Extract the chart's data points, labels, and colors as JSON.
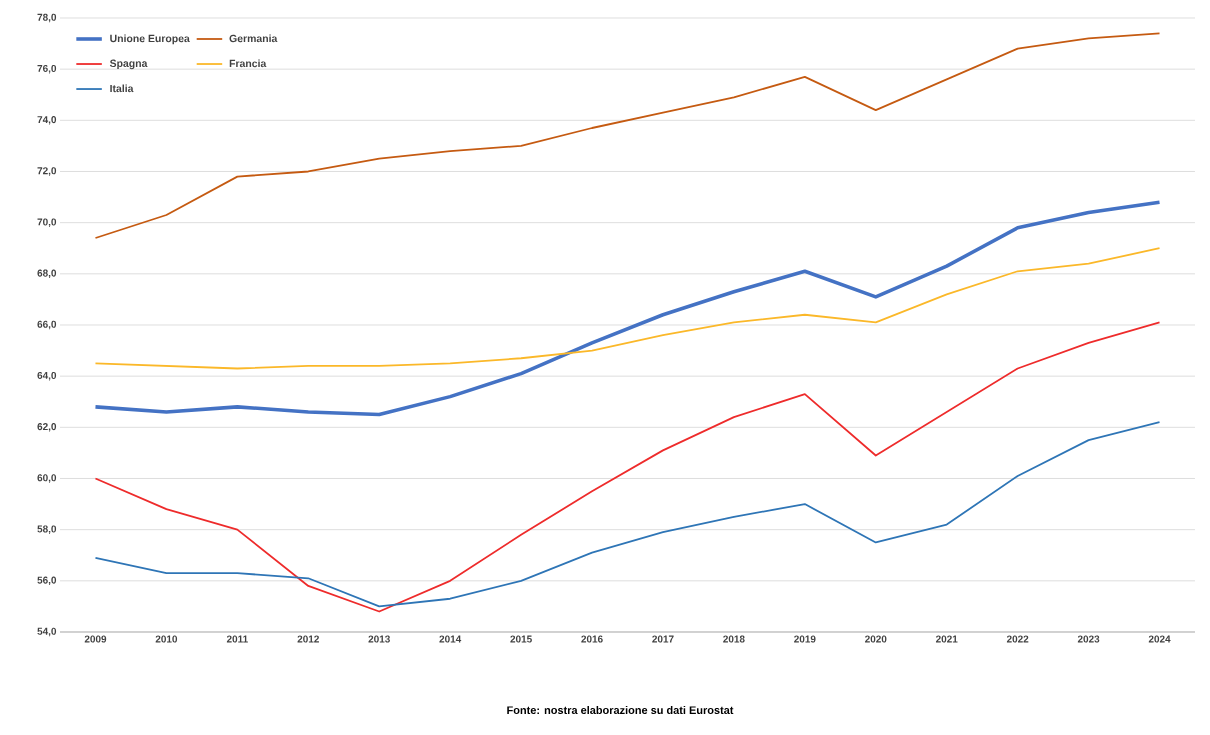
{
  "chart_data": {
    "type": "line",
    "categories": [
      "2009",
      "2010",
      "2011",
      "2012",
      "2013",
      "2014",
      "2015",
      "2016",
      "2017",
      "2018",
      "2019",
      "2020",
      "2021",
      "2022",
      "2023",
      "2024"
    ],
    "series": [
      {
        "name": "Unione Europea",
        "color": "#4472c4",
        "values": [
          62.8,
          62.6,
          62.8,
          62.6,
          62.5,
          63.2,
          64.1,
          65.3,
          66.4,
          67.3,
          68.1,
          67.1,
          68.3,
          69.8,
          70.4,
          70.8
        ]
      },
      {
        "name": "Germania",
        "color": "#c55a11",
        "values": [
          69.4,
          70.3,
          71.8,
          72.0,
          72.5,
          72.8,
          73.0,
          73.7,
          74.3,
          74.9,
          75.7,
          74.4,
          75.6,
          76.8,
          77.2,
          77.4
        ]
      },
      {
        "name": "Spagna",
        "color": "#ee2b2b",
        "values": [
          60.0,
          58.8,
          58.0,
          55.8,
          54.8,
          56.0,
          57.8,
          59.5,
          61.1,
          62.4,
          63.3,
          60.9,
          62.6,
          64.3,
          65.3,
          66.1
        ]
      },
      {
        "name": "Francia",
        "color": "#fbb829",
        "values": [
          64.5,
          64.4,
          64.3,
          64.4,
          64.4,
          64.5,
          64.7,
          65.0,
          65.6,
          66.1,
          66.4,
          66.1,
          67.2,
          68.1,
          68.4,
          69.0
        ]
      },
      {
        "name": "Italia",
        "color": "#2e75b6",
        "values": [
          56.9,
          56.3,
          56.3,
          56.1,
          55.0,
          55.3,
          56.0,
          57.1,
          57.9,
          58.5,
          59.0,
          57.5,
          58.2,
          60.1,
          61.5,
          62.2
        ]
      }
    ],
    "ylim": [
      54,
      78
    ],
    "yticks": [
      {
        "value": 54,
        "label": "54,0"
      },
      {
        "value": 56,
        "label": "56,0"
      },
      {
        "value": 58,
        "label": "58,0"
      },
      {
        "value": 60,
        "label": "60,0"
      },
      {
        "value": 62,
        "label": "62,0"
      },
      {
        "value": 64,
        "label": "64,0"
      },
      {
        "value": 66,
        "label": "66,0"
      },
      {
        "value": 68,
        "label": "68,0"
      },
      {
        "value": 70,
        "label": "70,0"
      },
      {
        "value": 72,
        "label": "72,0"
      },
      {
        "value": 74,
        "label": "74,0"
      },
      {
        "value": 76,
        "label": "76,0"
      },
      {
        "value": 78,
        "label": "78,0"
      }
    ],
    "grid": "y",
    "legend": "top left",
    "annotations": [
      "Fonte: nostra elaborazione su dati Eurostat"
    ]
  }
}
